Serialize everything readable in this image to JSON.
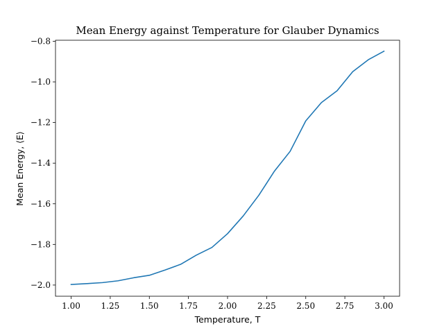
{
  "chart_data": {
    "type": "line",
    "title": "Mean Energy against Temperature for Glauber Dynamics",
    "xlabel": "Temperature, T",
    "ylabel": "Mean Energy, ⟨E⟩",
    "xlim": [
      0.9,
      3.1
    ],
    "ylim": [
      -2.055,
      -0.795
    ],
    "xticks": [
      1.0,
      1.25,
      1.5,
      1.75,
      2.0,
      2.25,
      2.5,
      2.75,
      3.0
    ],
    "xtick_labels": [
      "1.00",
      "1.25",
      "1.50",
      "1.75",
      "2.00",
      "2.25",
      "2.50",
      "2.75",
      "3.00"
    ],
    "yticks": [
      -2.0,
      -1.8,
      -1.6,
      -1.4,
      -1.2,
      -1.0,
      -0.8
    ],
    "ytick_labels": [
      "−2.0",
      "−1.8",
      "−1.6",
      "−1.4",
      "−1.2",
      "−1.0",
      "−0.8"
    ],
    "grid": false,
    "series": [
      {
        "color": "#1f77b4",
        "x": [
          1.0,
          1.1,
          1.2,
          1.3,
          1.4,
          1.5,
          1.6,
          1.7,
          1.8,
          1.9,
          2.0,
          2.1,
          2.2,
          2.3,
          2.4,
          2.5,
          2.6,
          2.7,
          2.8,
          2.9,
          3.0
        ],
        "y": [
          -1.997,
          -1.993,
          -1.988,
          -1.979,
          -1.964,
          -1.952,
          -1.926,
          -1.898,
          -1.853,
          -1.815,
          -1.747,
          -1.66,
          -1.558,
          -1.439,
          -1.342,
          -1.192,
          -1.102,
          -1.044,
          -0.95,
          -0.891,
          -0.849
        ]
      }
    ]
  }
}
